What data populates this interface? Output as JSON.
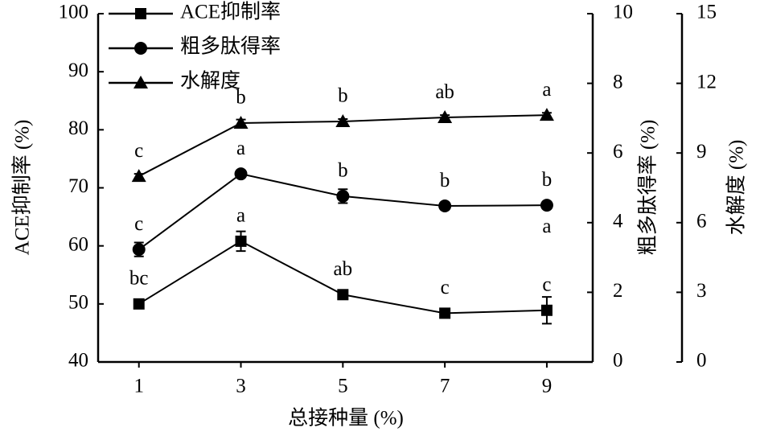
{
  "chart_data": {
    "type": "line",
    "x_label": "总接种量 (%)",
    "y_label": "ACE抑制率 (%)",
    "y2_label": "粗多肽得率 (%)",
    "y3_label": "水解度 (%)",
    "x": [
      1,
      3,
      5,
      7,
      9
    ],
    "xlim": [
      0.2,
      9.9
    ],
    "xticks": [
      1,
      3,
      5,
      7,
      9
    ],
    "ylim": [
      40,
      100
    ],
    "yticks": [
      40,
      50,
      60,
      70,
      80,
      90,
      100
    ],
    "y2lim": [
      0,
      10
    ],
    "y2ticks": [
      0,
      2,
      4,
      6,
      8,
      10
    ],
    "y3lim": [
      0,
      15
    ],
    "y3ticks": [
      0,
      3,
      6,
      9,
      12,
      15
    ],
    "legend": "upper left",
    "series": [
      {
        "name": "ACE抑制率",
        "color": "#000000",
        "marker": "square",
        "values": [
          50.0,
          60.8,
          51.6,
          48.4,
          48.9
        ],
        "errors": [
          0.7,
          1.7,
          0.5,
          0.6,
          2.3
        ],
        "labels": [
          "bc",
          "a",
          "ab",
          "c",
          "c"
        ]
      },
      {
        "name": "粗多肽得率",
        "color": "#000000",
        "marker": "circle",
        "axis": "y2",
        "values": [
          3.23,
          5.4,
          4.76,
          4.48,
          4.5
        ],
        "errors": [
          0.2,
          0.1,
          0.2,
          0.1,
          0.1
        ],
        "labels": [
          "c",
          "a",
          "b",
          "b",
          "b"
        ]
      },
      {
        "name": "水解度",
        "color": "#000000",
        "marker": "triangle",
        "axis": "y3",
        "values": [
          8.0,
          10.29,
          10.36,
          10.53,
          10.63
        ],
        "errors": [
          0.1,
          0.15,
          0.1,
          0.1,
          0.1
        ],
        "labels": [
          "c",
          "b",
          "b",
          "ab",
          "a"
        ]
      }
    ],
    "annotations": [
      {
        "text": "a",
        "x": 9,
        "y": 63.1
      }
    ]
  }
}
